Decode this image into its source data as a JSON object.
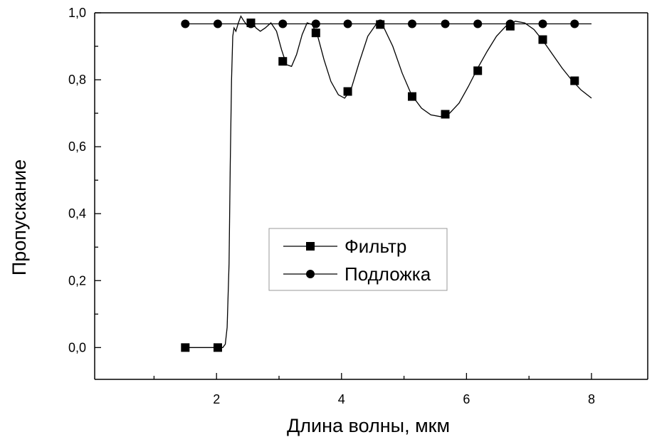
{
  "chart_data": {
    "type": "line",
    "title": "",
    "xlabel": "Длина волны, мкм",
    "ylabel": "Пропускание",
    "xlim": [
      0.05,
      8.9
    ],
    "ylim": [
      -0.095,
      1.0
    ],
    "x_ticks": [
      2,
      4,
      6,
      8
    ],
    "x_tick_labels": [
      "2",
      "4",
      "6",
      "8"
    ],
    "y_ticks": [
      0.0,
      0.2,
      0.4,
      0.6,
      0.8,
      1.0
    ],
    "y_tick_labels": [
      "0,0",
      "0,2",
      "0,4",
      "0,6",
      "0,8",
      "1,0"
    ],
    "grid": false,
    "legend_position": "center",
    "colors": {
      "line": "#000000",
      "marker": "#000000",
      "legend_border": "#999999"
    },
    "series": [
      {
        "name": "Фильтр",
        "marker": "square",
        "x": [
          1.5,
          2.02,
          2.55,
          3.06,
          3.59,
          4.1,
          4.62,
          5.13,
          5.66,
          6.18,
          6.7,
          7.22,
          7.73
        ],
        "y": [
          0.0,
          0.0,
          0.97,
          0.855,
          0.94,
          0.765,
          0.965,
          0.75,
          0.697,
          0.827,
          0.96,
          0.92,
          0.797
        ],
        "curve": [
          [
            1.5,
            0.0
          ],
          [
            2.1,
            0.0
          ],
          [
            2.14,
            0.01
          ],
          [
            2.17,
            0.06
          ],
          [
            2.2,
            0.25
          ],
          [
            2.22,
            0.55
          ],
          [
            2.24,
            0.8
          ],
          [
            2.26,
            0.93
          ],
          [
            2.28,
            0.955
          ],
          [
            2.31,
            0.945
          ],
          [
            2.35,
            0.97
          ],
          [
            2.39,
            0.99
          ],
          [
            2.44,
            0.975
          ],
          [
            2.5,
            0.96
          ],
          [
            2.57,
            0.975
          ],
          [
            2.63,
            0.955
          ],
          [
            2.7,
            0.945
          ],
          [
            2.78,
            0.955
          ],
          [
            2.87,
            0.97
          ],
          [
            2.96,
            0.945
          ],
          [
            3.04,
            0.89
          ],
          [
            3.12,
            0.845
          ],
          [
            3.2,
            0.84
          ],
          [
            3.28,
            0.875
          ],
          [
            3.37,
            0.935
          ],
          [
            3.45,
            0.97
          ],
          [
            3.53,
            0.965
          ],
          [
            3.62,
            0.93
          ],
          [
            3.72,
            0.86
          ],
          [
            3.83,
            0.795
          ],
          [
            3.95,
            0.755
          ],
          [
            4.05,
            0.745
          ],
          [
            4.15,
            0.77
          ],
          [
            4.28,
            0.85
          ],
          [
            4.42,
            0.93
          ],
          [
            4.55,
            0.965
          ],
          [
            4.68,
            0.955
          ],
          [
            4.82,
            0.9
          ],
          [
            4.97,
            0.82
          ],
          [
            5.12,
            0.755
          ],
          [
            5.28,
            0.715
          ],
          [
            5.43,
            0.695
          ],
          [
            5.58,
            0.69
          ],
          [
            5.73,
            0.7
          ],
          [
            5.88,
            0.73
          ],
          [
            6.03,
            0.78
          ],
          [
            6.18,
            0.835
          ],
          [
            6.33,
            0.885
          ],
          [
            6.48,
            0.93
          ],
          [
            6.63,
            0.96
          ],
          [
            6.78,
            0.975
          ],
          [
            6.93,
            0.97
          ],
          [
            7.08,
            0.95
          ],
          [
            7.23,
            0.915
          ],
          [
            7.38,
            0.875
          ],
          [
            7.53,
            0.835
          ],
          [
            7.68,
            0.8
          ],
          [
            7.83,
            0.77
          ],
          [
            8.0,
            0.745
          ]
        ]
      },
      {
        "name": "Подложка",
        "marker": "circle",
        "x": [
          1.5,
          2.02,
          2.55,
          3.06,
          3.59,
          4.1,
          4.62,
          5.13,
          5.66,
          6.18,
          6.7,
          7.22,
          7.73
        ],
        "y": [
          0.967,
          0.967,
          0.967,
          0.967,
          0.967,
          0.967,
          0.967,
          0.967,
          0.967,
          0.967,
          0.967,
          0.967,
          0.967
        ],
        "curve": [
          [
            1.5,
            0.967
          ],
          [
            8.0,
            0.967
          ]
        ]
      }
    ]
  }
}
